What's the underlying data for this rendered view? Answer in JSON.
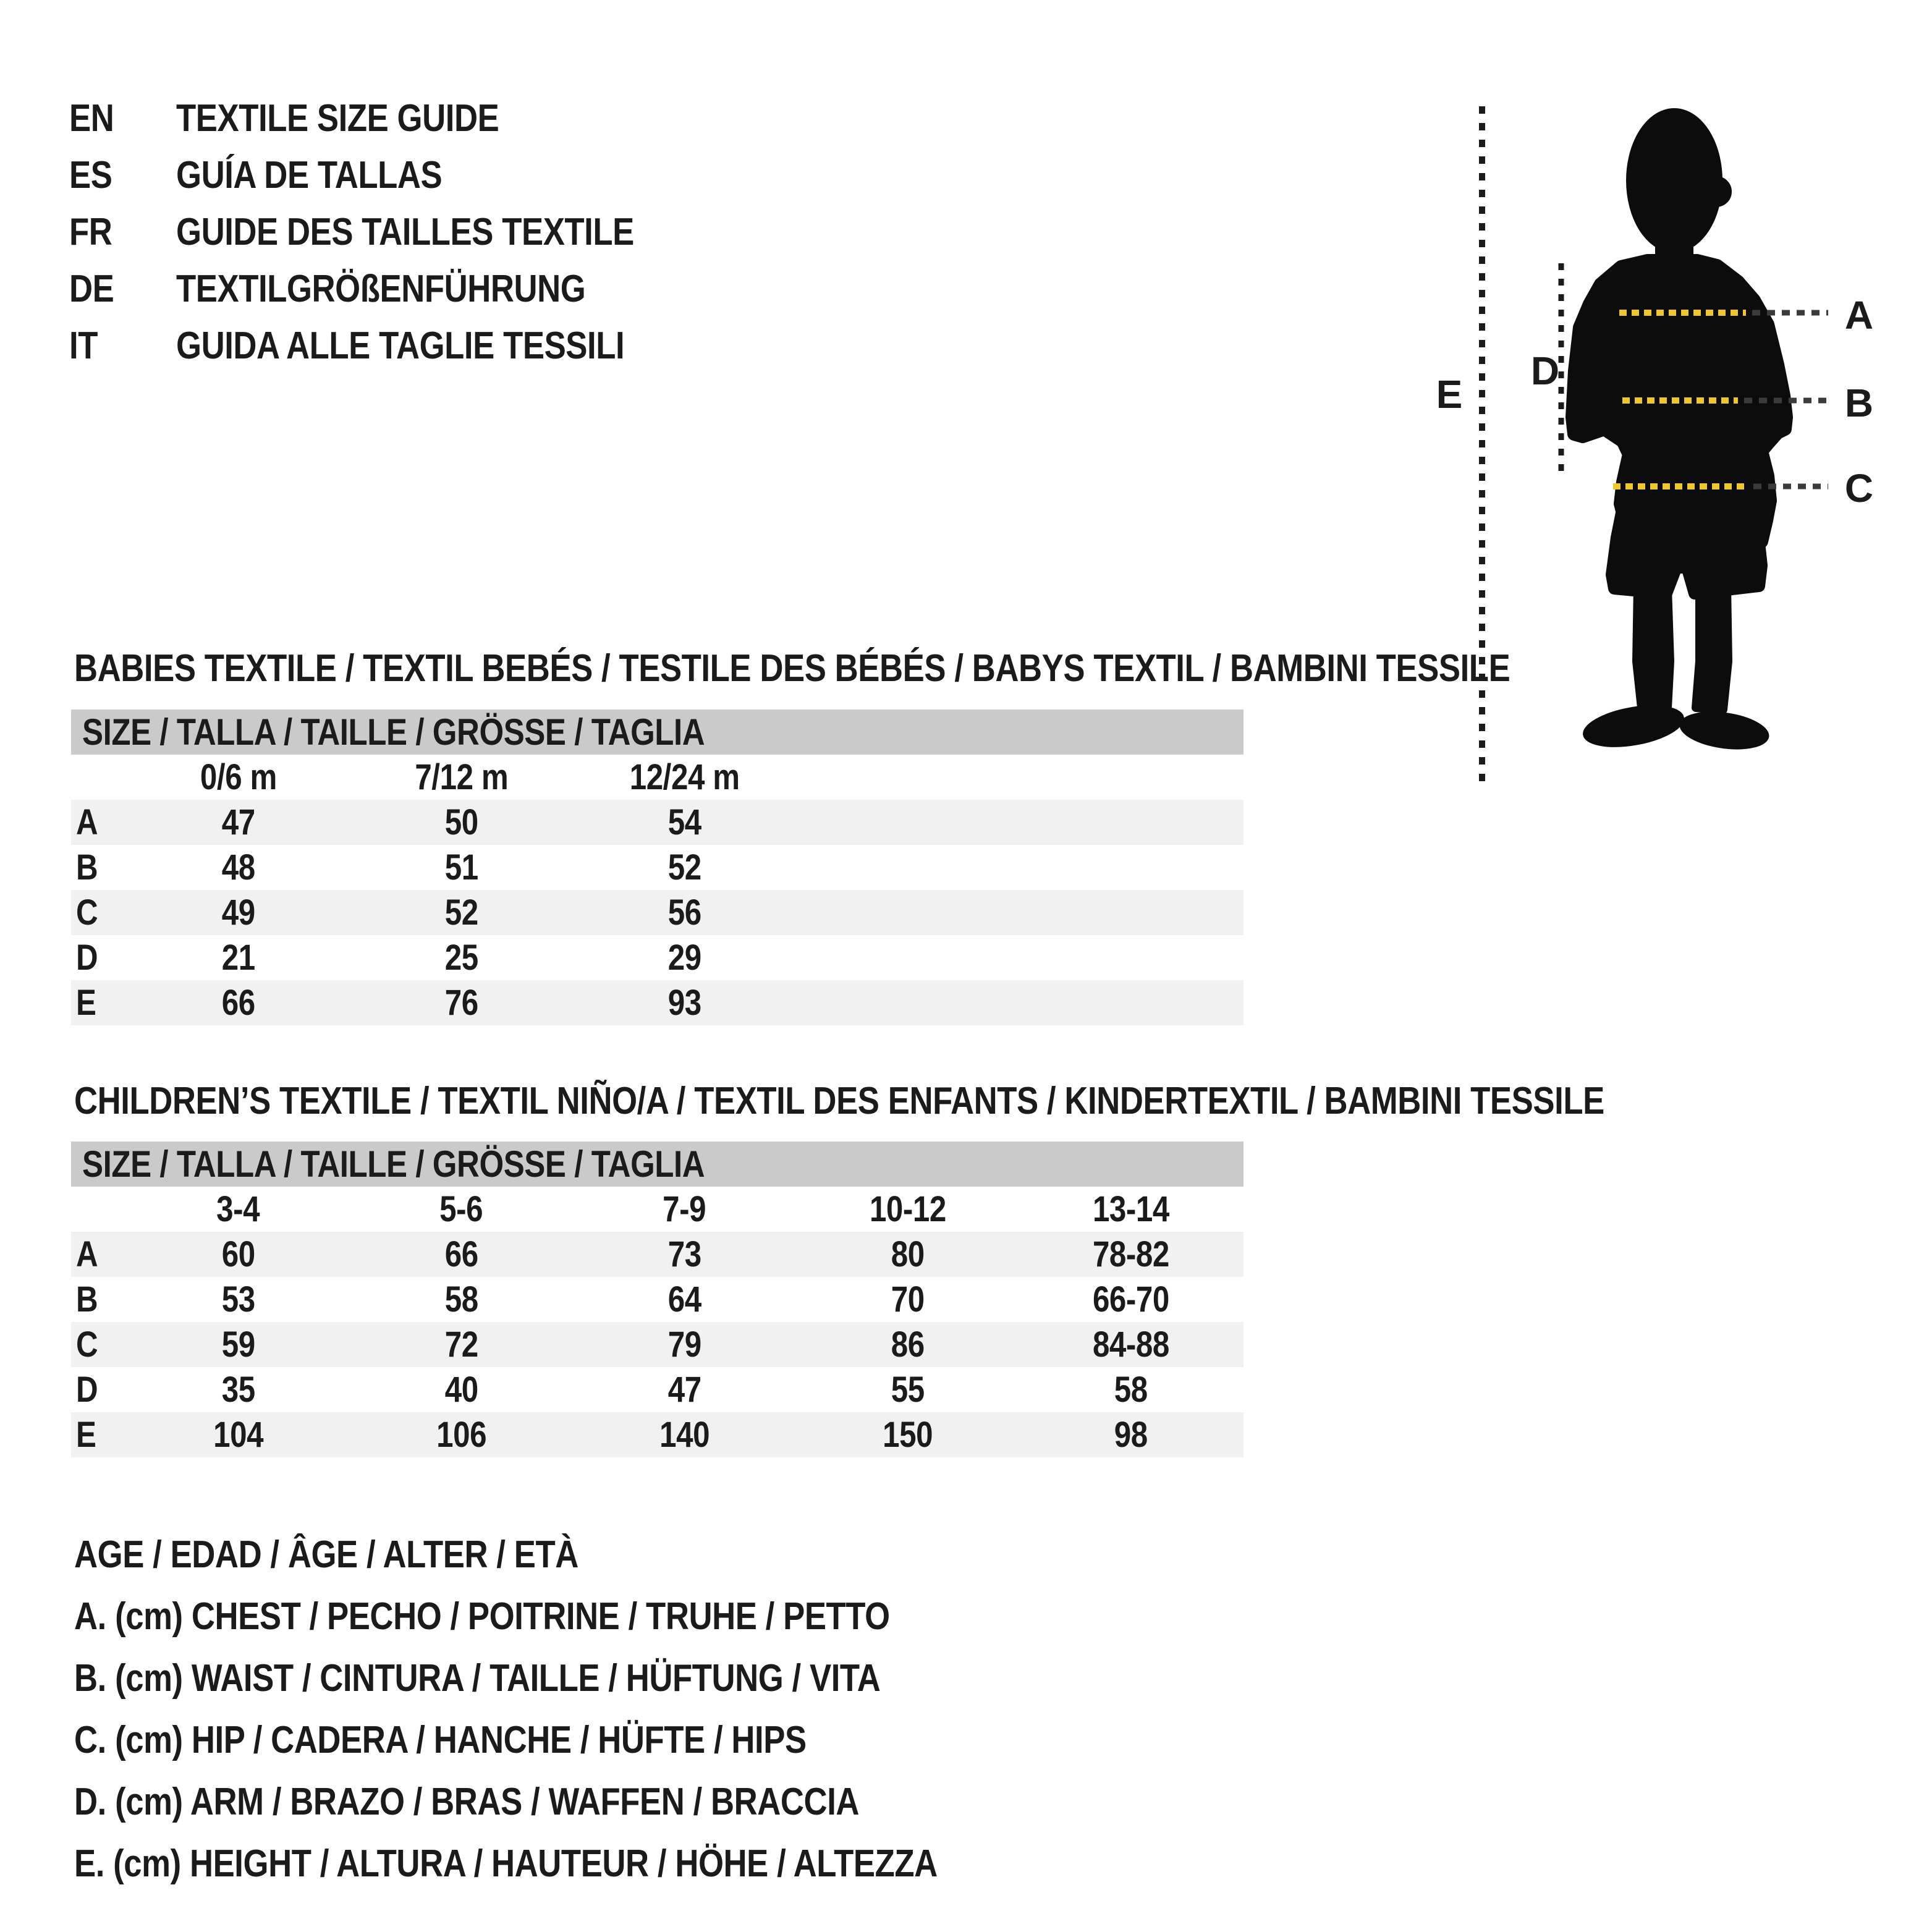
{
  "colors": {
    "ink": "#1b1b1b",
    "silhouette_black": "#0c0c0c",
    "accent_yellow": "#EEC62F",
    "dash_dark": "#3b3b3b",
    "header_bar_gray": "#cacaca",
    "row_stripe_gray": "#f1f1f1",
    "background": "#ffffff"
  },
  "languages": [
    {
      "code": "EN",
      "title": "TEXTILE SIZE GUIDE"
    },
    {
      "code": "ES",
      "title": "GUÍA DE TALLAS"
    },
    {
      "code": "FR",
      "title": "GUIDE DES TAILLES TEXTILE"
    },
    {
      "code": "DE",
      "title": "TEXTILGRÖßENFÜHRUNG"
    },
    {
      "code": "IT",
      "title": "GUIDA ALLE TAGLIE TESSILI"
    }
  ],
  "figure": {
    "description": "child-silhouette-with-measurement-lines",
    "label_a": "A",
    "label_b": "B",
    "label_c": "C",
    "label_d": "D",
    "label_e": "E"
  },
  "babies_table": {
    "title": "BABIES TEXTILE / TEXTIL BEBÉS / TESTILE DES BÉBÉS / BABYS TEXTIL / BAMBINI TESSILE",
    "size_header": "SIZE / TALLA / TAILLE / GRÖSSE / TAGLIA",
    "columns": [
      "0/6 m",
      "7/12 m",
      "12/24 m"
    ],
    "rows": [
      {
        "label": "A",
        "values": [
          "47",
          "50",
          "54"
        ]
      },
      {
        "label": "B",
        "values": [
          "48",
          "51",
          "52"
        ]
      },
      {
        "label": "C",
        "values": [
          "49",
          "52",
          "56"
        ]
      },
      {
        "label": "D",
        "values": [
          "21",
          "25",
          "29"
        ]
      },
      {
        "label": "E",
        "values": [
          "66",
          "76",
          "93"
        ]
      }
    ]
  },
  "children_table": {
    "title": "CHILDREN’S TEXTILE / TEXTIL NIÑO/A / TEXTIL DES ENFANTS / KINDERTEXTIL / BAMBINI TESSILE",
    "size_header": "SIZE / TALLA / TAILLE / GRÖSSE / TAGLIA",
    "columns": [
      "3-4",
      "5-6",
      "7-9",
      "10-12",
      "13-14"
    ],
    "rows": [
      {
        "label": "A",
        "values": [
          "60",
          "66",
          "73",
          "80",
          "78-82"
        ]
      },
      {
        "label": "B",
        "values": [
          "53",
          "58",
          "64",
          "70",
          "66-70"
        ]
      },
      {
        "label": "C",
        "values": [
          "59",
          "72",
          "79",
          "86",
          "84-88"
        ]
      },
      {
        "label": "D",
        "values": [
          "35",
          "40",
          "47",
          "55",
          "58"
        ]
      },
      {
        "label": "E",
        "values": [
          "104",
          "106",
          "140",
          "150",
          "98"
        ]
      }
    ]
  },
  "legend": {
    "lines": [
      "AGE / EDAD / ÂGE / ALTER / ETÀ",
      "A. (cm) CHEST / PECHO / POITRINE / TRUHE / PETTO",
      "B. (cm) WAIST / CINTURA / TAILLE / HÜFTUNG / VITA",
      "C. (cm) HIP / CADERA / HANCHE / HÜFTE / HIPS",
      "D. (cm) ARM / BRAZO / BRAS / WAFFEN / BRACCIA",
      "E. (cm) HEIGHT / ALTURA / HAUTEUR / HÖHE / ALTEZZA"
    ]
  }
}
